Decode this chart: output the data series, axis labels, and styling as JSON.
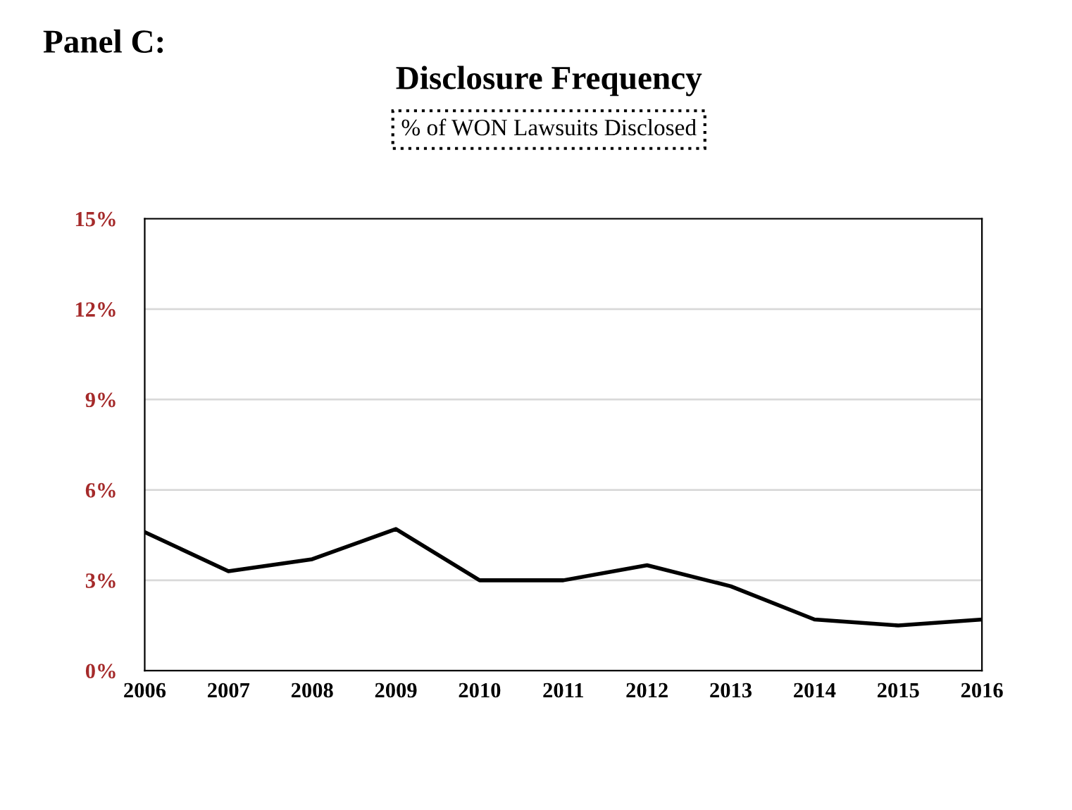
{
  "chart_data": {
    "type": "line",
    "title": "Disclosure Frequency",
    "subtitle": "% of WON Lawsuits Disclosed",
    "annotations": [
      "Panel C:"
    ],
    "x": [
      2006,
      2007,
      2008,
      2009,
      2010,
      2011,
      2012,
      2013,
      2014,
      2015,
      2016
    ],
    "series": [
      {
        "color": "#000000",
        "values": [
          4.6,
          3.3,
          3.7,
          4.7,
          3.0,
          3.0,
          3.5,
          2.8,
          1.7,
          1.5,
          1.7
        ]
      }
    ],
    "xlim": [
      2006,
      2016
    ],
    "xticks": [
      2006,
      2007,
      2008,
      2009,
      2010,
      2011,
      2012,
      2013,
      2014,
      2015,
      2016
    ],
    "ylim": [
      0,
      15
    ],
    "yticks": [
      {
        "value": 0,
        "label": "0%"
      },
      {
        "value": 3,
        "label": "3%"
      },
      {
        "value": 6,
        "label": "6%"
      },
      {
        "value": 9,
        "label": "9%"
      },
      {
        "value": 12,
        "label": "12%"
      },
      {
        "value": 15,
        "label": "15%"
      }
    ],
    "grid": "y",
    "marker": "none",
    "line_style": "solid"
  }
}
